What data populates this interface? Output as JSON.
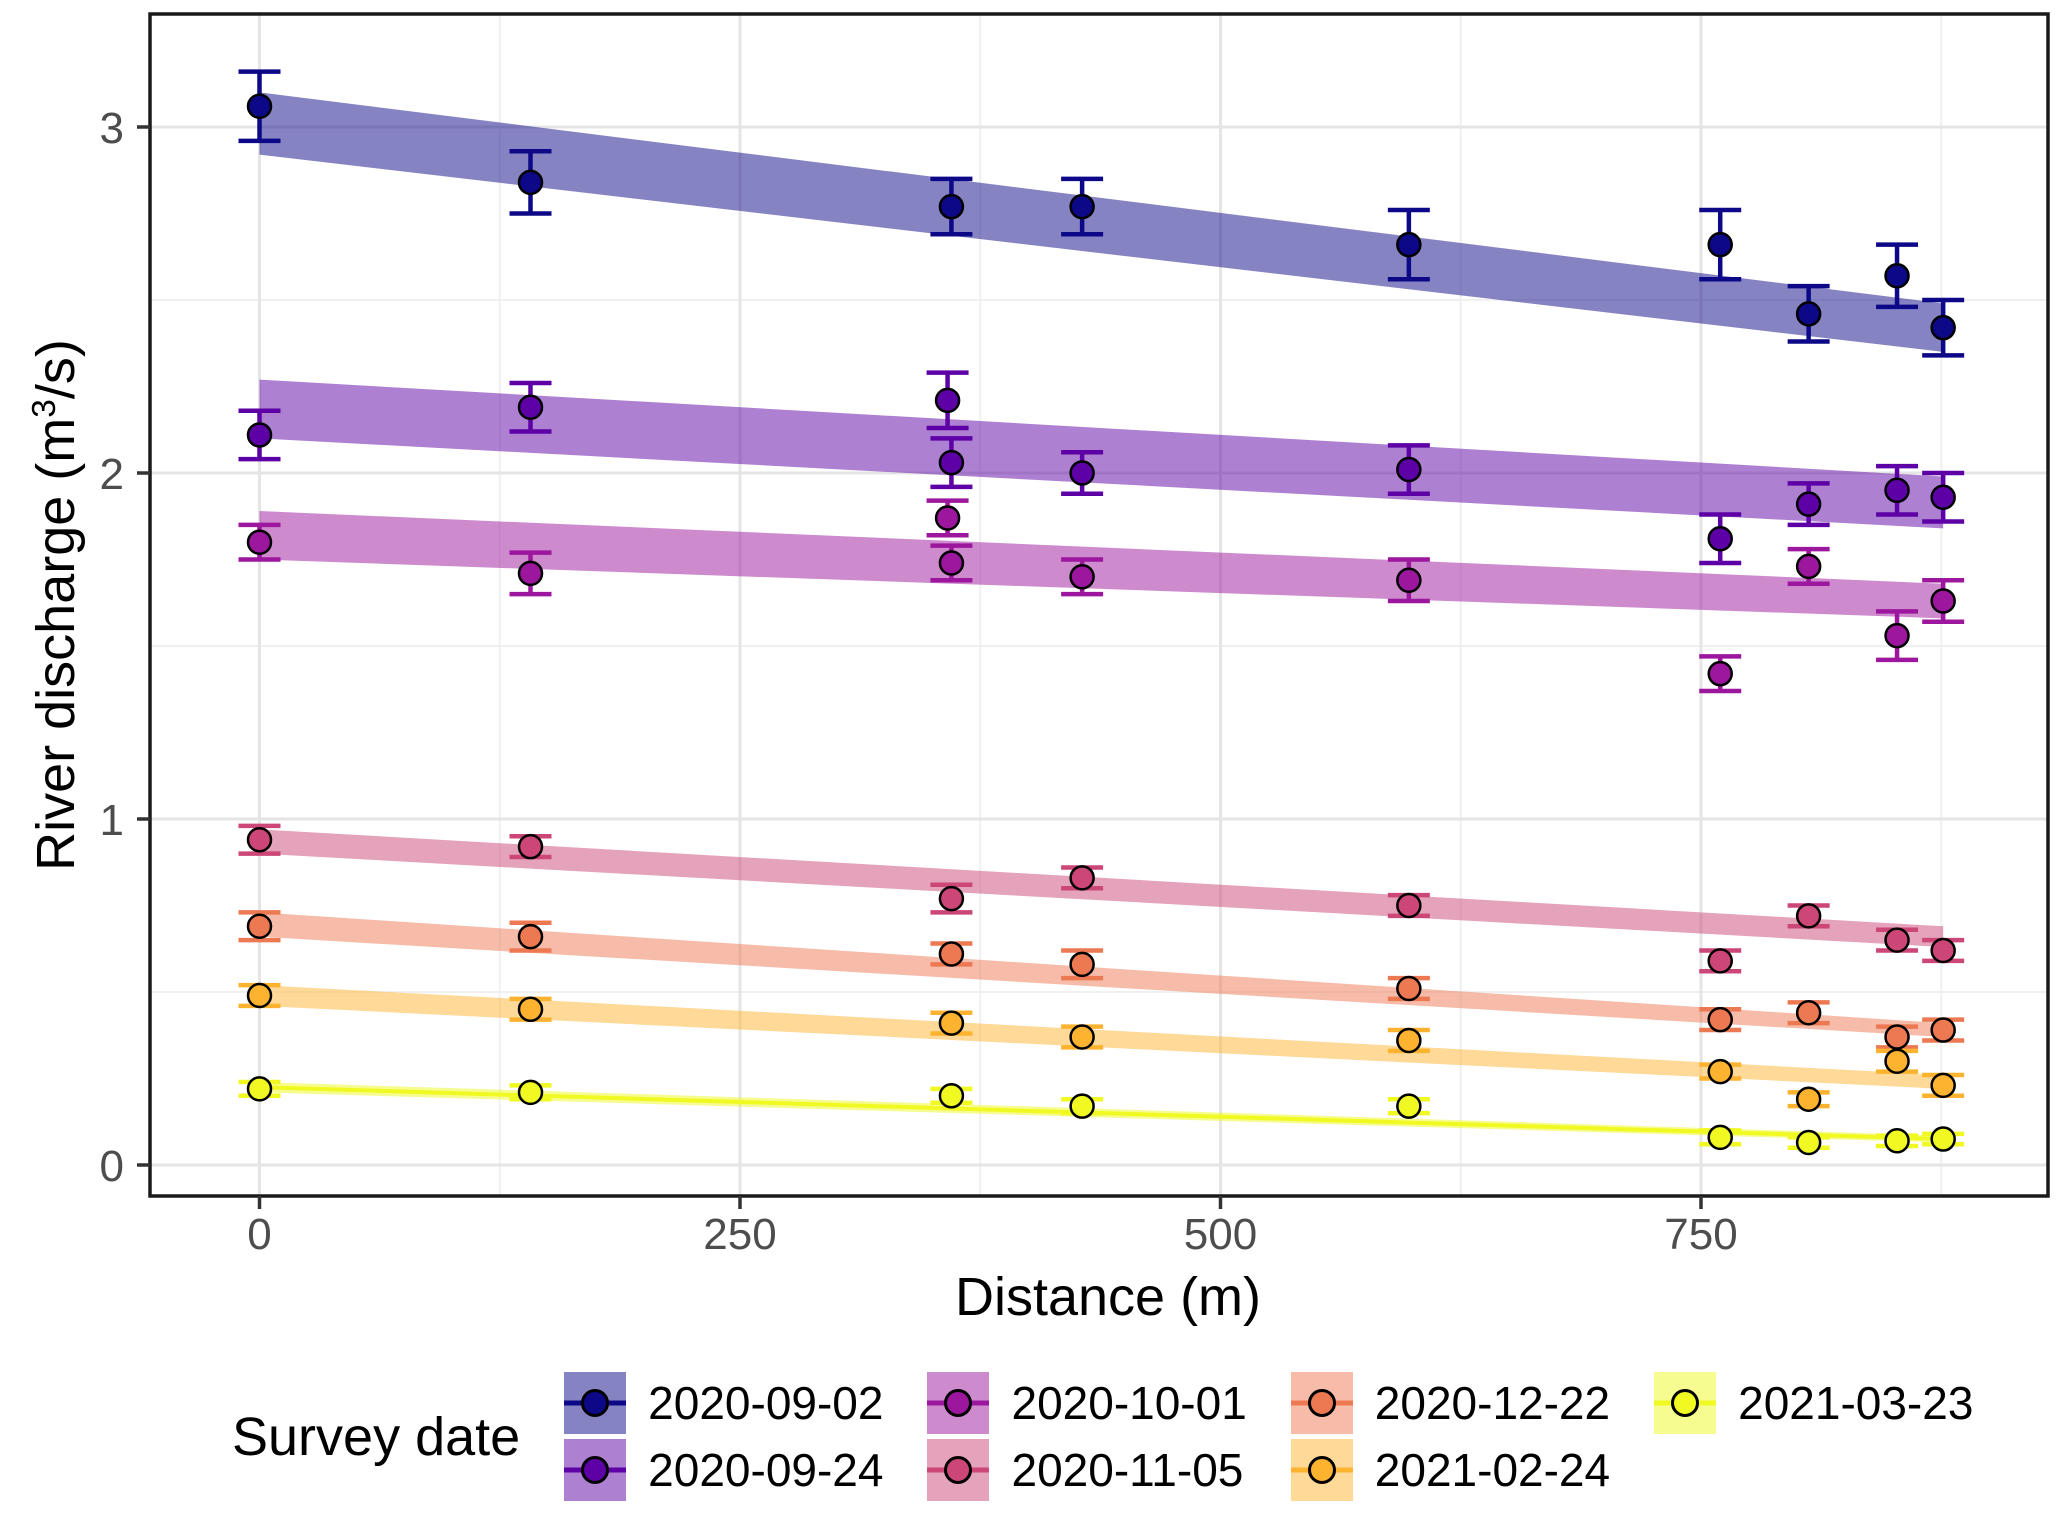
{
  "chart_data": {
    "type": "scatter",
    "title": "",
    "xlabel": "Distance (m)",
    "ylabel": {
      "pre": "River discharge (m",
      "sup": "3",
      "post": "/s)"
    },
    "xlim": [
      -57,
      930
    ],
    "ylim": [
      -0.09,
      3.33
    ],
    "x_major_breaks": [
      0,
      250,
      500,
      750
    ],
    "x_minor_breaks": [
      125,
      375,
      625,
      875
    ],
    "x_tick_labels": [
      "0",
      "250",
      "500",
      "750"
    ],
    "y_major_breaks": [
      0,
      1,
      2,
      3
    ],
    "y_minor_breaks": [
      0.5,
      1.5,
      2.5
    ],
    "y_tick_labels": [
      "0",
      "1",
      "2",
      "3"
    ],
    "grid": true,
    "legend_title": "Survey date",
    "legend_position": "bottom",
    "legend_columns": [
      [
        0,
        1
      ],
      [
        2,
        3
      ],
      [
        4,
        5
      ],
      [
        6
      ]
    ],
    "series": [
      {
        "name": "2020-09-02",
        "color": "#0D0887",
        "ribbon": {
          "x": [
            0,
            876
          ],
          "upper": [
            3.1,
            2.49
          ],
          "lower": [
            2.92,
            2.35
          ]
        },
        "show_line": false,
        "points": [
          [
            0,
            3.06,
            0.1
          ],
          [
            141,
            2.84,
            0.09
          ],
          [
            360,
            2.77,
            0.08
          ],
          [
            428,
            2.77,
            0.08
          ],
          [
            598,
            2.66,
            0.1
          ],
          [
            760,
            2.66,
            0.1
          ],
          [
            806,
            2.46,
            0.08
          ],
          [
            852,
            2.57,
            0.09
          ],
          [
            876,
            2.42,
            0.08
          ]
        ]
      },
      {
        "name": "2020-09-24",
        "color": "#5D01A6",
        "ribbon": {
          "x": [
            0,
            876
          ],
          "upper": [
            2.27,
            1.99
          ],
          "lower": [
            2.1,
            1.84
          ]
        },
        "show_line": false,
        "points": [
          [
            0,
            2.11,
            0.07
          ],
          [
            141,
            2.19,
            0.07
          ],
          [
            358,
            2.21,
            0.08
          ],
          [
            360,
            2.03,
            0.07
          ],
          [
            428,
            2.0,
            0.06
          ],
          [
            598,
            2.01,
            0.07
          ],
          [
            760,
            1.81,
            0.07
          ],
          [
            806,
            1.91,
            0.06
          ],
          [
            852,
            1.95,
            0.07
          ],
          [
            876,
            1.93,
            0.07
          ]
        ]
      },
      {
        "name": "2020-10-01",
        "color": "#9C179E",
        "ribbon": {
          "x": [
            0,
            876
          ],
          "upper": [
            1.89,
            1.68
          ],
          "lower": [
            1.75,
            1.58
          ]
        },
        "show_line": false,
        "points": [
          [
            0,
            1.8,
            0.05
          ],
          [
            141,
            1.71,
            0.06
          ],
          [
            358,
            1.87,
            0.05
          ],
          [
            360,
            1.74,
            0.05
          ],
          [
            428,
            1.7,
            0.05
          ],
          [
            598,
            1.69,
            0.06
          ],
          [
            760,
            1.42,
            0.05
          ],
          [
            806,
            1.73,
            0.05
          ],
          [
            852,
            1.53,
            0.07
          ],
          [
            876,
            1.63,
            0.06
          ]
        ]
      },
      {
        "name": "2020-11-05",
        "color": "#CC4678",
        "ribbon": {
          "x": [
            0,
            876
          ],
          "upper": [
            0.97,
            0.69
          ],
          "lower": [
            0.9,
            0.63
          ]
        },
        "show_line": false,
        "points": [
          [
            0,
            0.94,
            0.04
          ],
          [
            141,
            0.92,
            0.03
          ],
          [
            360,
            0.77,
            0.04
          ],
          [
            428,
            0.83,
            0.03
          ],
          [
            598,
            0.75,
            0.03
          ],
          [
            760,
            0.59,
            0.03
          ],
          [
            806,
            0.72,
            0.03
          ],
          [
            852,
            0.65,
            0.03
          ],
          [
            876,
            0.62,
            0.03
          ]
        ]
      },
      {
        "name": "2020-12-22",
        "color": "#ED7953",
        "ribbon": {
          "x": [
            0,
            876
          ],
          "upper": [
            0.73,
            0.41
          ],
          "lower": [
            0.66,
            0.37
          ]
        },
        "show_line": false,
        "points": [
          [
            0,
            0.69,
            0.04
          ],
          [
            141,
            0.66,
            0.04
          ],
          [
            360,
            0.61,
            0.03
          ],
          [
            428,
            0.58,
            0.04
          ],
          [
            598,
            0.51,
            0.03
          ],
          [
            760,
            0.42,
            0.03
          ],
          [
            806,
            0.44,
            0.03
          ],
          [
            852,
            0.37,
            0.03
          ],
          [
            876,
            0.39,
            0.03
          ]
        ]
      },
      {
        "name": "2021-02-24",
        "color": "#FDB32F",
        "ribbon": {
          "x": [
            0,
            876
          ],
          "upper": [
            0.52,
            0.26
          ],
          "lower": [
            0.46,
            0.22
          ]
        },
        "show_line": false,
        "points": [
          [
            0,
            0.49,
            0.03
          ],
          [
            141,
            0.45,
            0.03
          ],
          [
            360,
            0.41,
            0.03
          ],
          [
            428,
            0.37,
            0.03
          ],
          [
            598,
            0.36,
            0.03
          ],
          [
            760,
            0.27,
            0.02
          ],
          [
            806,
            0.19,
            0.02
          ],
          [
            852,
            0.3,
            0.03
          ],
          [
            876,
            0.23,
            0.03
          ]
        ]
      },
      {
        "name": "2021-03-23",
        "color": "#F0F921",
        "ribbon": {
          "x": [
            0,
            876
          ],
          "upper": [
            0.24,
            0.085
          ],
          "lower": [
            0.21,
            0.065
          ]
        },
        "show_line": true,
        "line": {
          "x": [
            0,
            876
          ],
          "y": [
            0.225,
            0.075
          ]
        },
        "points": [
          [
            0,
            0.22,
            0.02
          ],
          [
            141,
            0.21,
            0.02
          ],
          [
            360,
            0.2,
            0.02
          ],
          [
            428,
            0.17,
            0.02
          ],
          [
            598,
            0.17,
            0.02
          ],
          [
            760,
            0.08,
            0.02
          ],
          [
            806,
            0.065,
            0.015
          ],
          [
            852,
            0.07,
            0.015
          ],
          [
            876,
            0.075,
            0.015
          ]
        ]
      }
    ]
  }
}
